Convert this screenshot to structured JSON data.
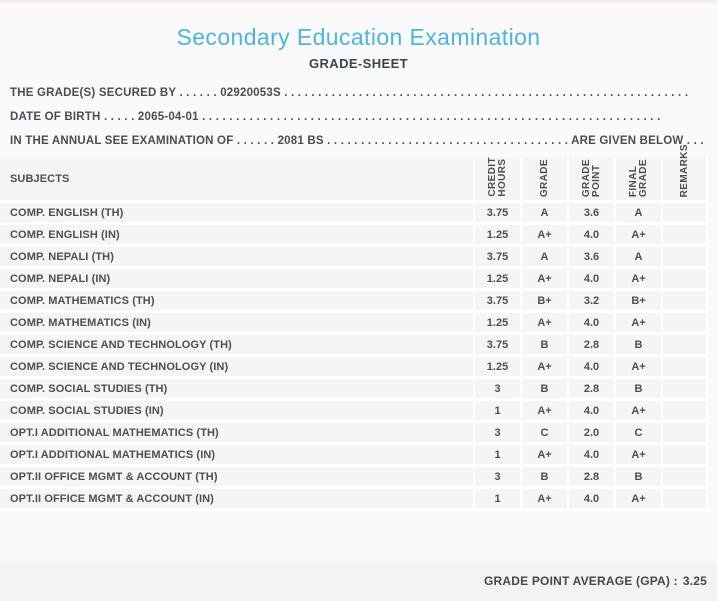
{
  "page": {
    "title": "Secondary Education Examination",
    "subtitle": "GRADE-SHEET"
  },
  "info_lines": [
    {
      "prefix": "THE GRADE(S) SECURED BY",
      "dots_before": " . . . . . . ",
      "value": "02920053S",
      "dots_after": " . . . . . . . . . . . . . . . . . . . . . . . . . . . . . . . . . . . . . . . . . . . . . . . . . . . . . . . . . . . .",
      "suffix": "",
      "dots_end": ""
    },
    {
      "prefix": "DATE OF BIRTH",
      "dots_before": " . . . . . ",
      "value": "2065-04-01",
      "dots_after": " . . . . . . . . . . . . . . . . . . . . . . . . . . . . . . . . . . . . . . . . . . . . . . . . . . . . . . . . . . . . . . . . . . . .",
      "suffix": "",
      "dots_end": ""
    },
    {
      "prefix": "IN THE ANNUAL SEE EXAMINATION OF",
      "dots_before": " . . . . . . ",
      "value": "2081 BS",
      "dots_after": " . . . . . . . . . . . . . . . . . . . . . . . . . . . . . . . . . . . . ",
      "suffix": "ARE GIVEN BELOW",
      "dots_end": " . . ."
    }
  ],
  "table": {
    "subjects_header": "SUBJECTS",
    "columns": [
      "CREDIT\nHOURS",
      "GRADE",
      "GRADE\nPOINT",
      "FINAL\nGRADE",
      "REMARKS"
    ],
    "rows": [
      {
        "subject": "COMP. ENGLISH (TH)",
        "credit_hours": "3.75",
        "grade": "A",
        "grade_point": "3.6",
        "final_grade": "A",
        "remarks": ""
      },
      {
        "subject": "COMP. ENGLISH (IN)",
        "credit_hours": "1.25",
        "grade": "A+",
        "grade_point": "4.0",
        "final_grade": "A+",
        "remarks": ""
      },
      {
        "subject": "COMP. NEPALI (TH)",
        "credit_hours": "3.75",
        "grade": "A",
        "grade_point": "3.6",
        "final_grade": "A",
        "remarks": ""
      },
      {
        "subject": "COMP. NEPALI (IN)",
        "credit_hours": "1.25",
        "grade": "A+",
        "grade_point": "4.0",
        "final_grade": "A+",
        "remarks": ""
      },
      {
        "subject": "COMP. MATHEMATICS (TH)",
        "credit_hours": "3.75",
        "grade": "B+",
        "grade_point": "3.2",
        "final_grade": "B+",
        "remarks": ""
      },
      {
        "subject": "COMP. MATHEMATICS (IN)",
        "credit_hours": "1.25",
        "grade": "A+",
        "grade_point": "4.0",
        "final_grade": "A+",
        "remarks": ""
      },
      {
        "subject": "COMP. SCIENCE AND TECHNOLOGY (TH)",
        "credit_hours": "3.75",
        "grade": "B",
        "grade_point": "2.8",
        "final_grade": "B",
        "remarks": ""
      },
      {
        "subject": "COMP. SCIENCE AND TECHNOLOGY (IN)",
        "credit_hours": "1.25",
        "grade": "A+",
        "grade_point": "4.0",
        "final_grade": "A+",
        "remarks": ""
      },
      {
        "subject": "COMP. SOCIAL STUDIES (TH)",
        "credit_hours": "3",
        "grade": "B",
        "grade_point": "2.8",
        "final_grade": "B",
        "remarks": ""
      },
      {
        "subject": "COMP. SOCIAL STUDIES (IN)",
        "credit_hours": "1",
        "grade": "A+",
        "grade_point": "4.0",
        "final_grade": "A+",
        "remarks": ""
      },
      {
        "subject": "OPT.I ADDITIONAL MATHEMATICS (TH)",
        "credit_hours": "3",
        "grade": "C",
        "grade_point": "2.0",
        "final_grade": "C",
        "remarks": ""
      },
      {
        "subject": "OPT.I ADDITIONAL MATHEMATICS (IN)",
        "credit_hours": "1",
        "grade": "A+",
        "grade_point": "4.0",
        "final_grade": "A+",
        "remarks": ""
      },
      {
        "subject": "OPT.II OFFICE MGMT & ACCOUNT (TH)",
        "credit_hours": "3",
        "grade": "B",
        "grade_point": "2.8",
        "final_grade": "B",
        "remarks": ""
      },
      {
        "subject": "OPT.II OFFICE MGMT & ACCOUNT (IN)",
        "credit_hours": "1",
        "grade": "A+",
        "grade_point": "4.0",
        "final_grade": "A+",
        "remarks": ""
      }
    ]
  },
  "footer": {
    "gpa_label": "GRADE POINT AVERAGE (GPA) :",
    "gpa_value": "3.25"
  },
  "colors": {
    "accent_title": "#4db4e3",
    "heading_text": "#3b444d",
    "body_text": "#4a5056",
    "row_background": "#f7f5f4",
    "page_background": "#fbfafa",
    "footer_background": "#f5f2f2",
    "separator": "#ffffff"
  }
}
